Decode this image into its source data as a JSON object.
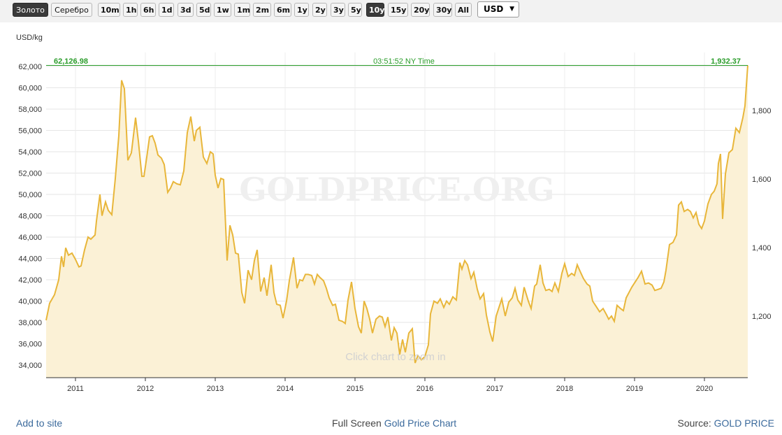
{
  "toolbar": {
    "metals": [
      "Золото",
      "Серебро"
    ],
    "active_metal": "Золото",
    "ranges": [
      "10m",
      "1h",
      "6h",
      "1d",
      "3d",
      "5d",
      "1w",
      "1m",
      "2m",
      "6m",
      "1y",
      "2y",
      "3y",
      "5y",
      "10y",
      "15y",
      "20y",
      "30y",
      "All"
    ],
    "active_range": "10y",
    "currency": "USD"
  },
  "chart": {
    "unit_label": "USD/kg",
    "current_left": "62,126.98",
    "current_time": "03:51:52 NY Time",
    "current_right": "1,932.37",
    "watermark": "GOLDPRICE.ORG",
    "zoom_hint": "Click chart to zoom in",
    "line_color": "#e8b63a",
    "fill_color": "#fbf1d6",
    "current_line_color": "#2a9c2a"
  },
  "chart_data": {
    "type": "area",
    "title": "",
    "xlabel": "",
    "ylabel": "USD/kg",
    "x_ticks": [
      "2011",
      "2012",
      "2013",
      "2014",
      "2015",
      "2016",
      "2017",
      "2018",
      "2019",
      "2020"
    ],
    "y_left_ticks": [
      "34,000",
      "36,000",
      "38,000",
      "40,000",
      "42,000",
      "44,000",
      "46,000",
      "48,000",
      "50,000",
      "52,000",
      "54,000",
      "56,000",
      "58,000",
      "60,000",
      "62,000"
    ],
    "y_right_ticks": [
      "1,200",
      "1,400",
      "1,600",
      "1,800"
    ],
    "ylim": [
      33000,
      63000
    ],
    "xlim": [
      2010.58,
      2020.62
    ],
    "series": [
      {
        "x": [
          2010.58,
          2010.63,
          2010.7,
          2010.76,
          2010.8,
          2010.83,
          2010.86,
          2010.9,
          2010.95,
          2011.0,
          2011.05,
          2011.08,
          2011.13,
          2011.18,
          2011.22,
          2011.28,
          2011.3,
          2011.35,
          2011.38,
          2011.43,
          2011.47,
          2011.52,
          2011.57,
          2011.62,
          2011.66,
          2011.7,
          2011.75,
          2011.8,
          2011.86,
          2011.9,
          2011.95,
          2011.98,
          2012.02,
          2012.06,
          2012.1,
          2012.14,
          2012.18,
          2012.23,
          2012.27,
          2012.32,
          2012.36,
          2012.4,
          2012.45,
          2012.5,
          2012.55,
          2012.6,
          2012.65,
          2012.7,
          2012.73,
          2012.78,
          2012.83,
          2012.88,
          2012.93,
          2012.97,
          2013.0,
          2013.04,
          2013.08,
          2013.12,
          2013.17,
          2013.21,
          2013.25,
          2013.29,
          2013.33,
          2013.38,
          2013.42,
          2013.47,
          2013.52,
          2013.56,
          2013.6,
          2013.65,
          2013.7,
          2013.74,
          2013.8,
          2013.84,
          2013.88,
          2013.93,
          2013.97,
          2014.02,
          2014.06,
          2014.12,
          2014.17,
          2014.21,
          2014.25,
          2014.29,
          2014.33,
          2014.38,
          2014.42,
          2014.46,
          2014.5,
          2014.55,
          2014.59,
          2014.63,
          2014.68,
          2014.72,
          2014.77,
          2014.82,
          2014.86,
          2014.9,
          2014.95,
          2015.0,
          2015.05,
          2015.09,
          2015.13,
          2015.17,
          2015.21,
          2015.25,
          2015.3,
          2015.35,
          2015.39,
          2015.43,
          2015.47,
          2015.52,
          2015.56,
          2015.6,
          2015.64,
          2015.68,
          2015.72,
          2015.77,
          2015.82,
          2015.86,
          2015.9,
          2015.95,
          2016.0,
          2016.05,
          2016.08,
          2016.13,
          2016.18,
          2016.22,
          2016.27,
          2016.31,
          2016.35,
          2016.4,
          2016.45,
          2016.5,
          2016.53,
          2016.57,
          2016.61,
          2016.66,
          2016.7,
          2016.75,
          2016.79,
          2016.84,
          2016.88,
          2016.93,
          2016.97,
          2017.02,
          2017.06,
          2017.1,
          2017.15,
          2017.2,
          2017.25,
          2017.29,
          2017.33,
          2017.38,
          2017.42,
          2017.48,
          2017.52,
          2017.57,
          2017.6,
          2017.65,
          2017.69,
          2017.73,
          2017.78,
          2017.82,
          2017.86,
          2017.91,
          2017.96,
          2018.0,
          2018.05,
          2018.1,
          2018.14,
          2018.18,
          2018.22,
          2018.27,
          2018.32,
          2018.36,
          2018.4,
          2018.45,
          2018.5,
          2018.55,
          2018.6,
          2018.63,
          2018.67,
          2018.71,
          2018.75,
          2018.8,
          2018.84,
          2018.88,
          2018.92,
          2018.96,
          2019.0,
          2019.05,
          2019.1,
          2019.15,
          2019.2,
          2019.25,
          2019.29,
          2019.34,
          2019.38,
          2019.42,
          2019.45,
          2019.5,
          2019.55,
          2019.6,
          2019.63,
          2019.67,
          2019.71,
          2019.76,
          2019.8,
          2019.84,
          2019.88,
          2019.92,
          2019.96,
          2020.0,
          2020.05,
          2020.1,
          2020.14,
          2020.18,
          2020.2,
          2020.23,
          2020.26,
          2020.3,
          2020.35,
          2020.4,
          2020.45,
          2020.5,
          2020.55,
          2020.58,
          2020.62
        ],
        "values": [
          38200,
          39800,
          40600,
          42000,
          44200,
          43200,
          45000,
          44300,
          44500,
          43900,
          43200,
          43300,
          44800,
          46000,
          45800,
          46200,
          47500,
          50000,
          48000,
          49300,
          48500,
          48100,
          51500,
          55500,
          60700,
          59900,
          53200,
          53900,
          57200,
          55000,
          51700,
          51700,
          53500,
          55400,
          55500,
          54800,
          53700,
          53400,
          52800,
          50200,
          50600,
          51200,
          51000,
          50900,
          52200,
          55800,
          57300,
          55000,
          56000,
          56300,
          53500,
          52900,
          54000,
          53800,
          51800,
          50600,
          51500,
          51400,
          43800,
          47100,
          46200,
          44500,
          44400,
          40800,
          39800,
          42900,
          42000,
          43800,
          44800,
          40900,
          42200,
          40500,
          43400,
          40800,
          39700,
          39600,
          38400,
          40000,
          41900,
          44100,
          41200,
          42000,
          41900,
          42500,
          42500,
          42400,
          41600,
          42500,
          42200,
          41900,
          41200,
          40300,
          39600,
          39700,
          38200,
          38100,
          37900,
          40100,
          41800,
          39300,
          37600,
          37000,
          40000,
          39300,
          38300,
          37000,
          38300,
          38600,
          38500,
          37600,
          38500,
          36300,
          37500,
          37000,
          35000,
          36400,
          35200,
          37000,
          37400,
          34200,
          34900,
          34500,
          34800,
          35900,
          38800,
          40000,
          39800,
          40200,
          39400,
          40000,
          39700,
          40400,
          40100,
          43600,
          43000,
          43800,
          43400,
          42100,
          42700,
          41100,
          40200,
          40700,
          38700,
          37100,
          36200,
          38600,
          39400,
          40200,
          38600,
          39900,
          40300,
          41200,
          40100,
          39600,
          41300,
          40000,
          39300,
          41400,
          41600,
          43400,
          41700,
          41000,
          41100,
          40900,
          41700,
          40900,
          42600,
          43500,
          42300,
          42600,
          42400,
          43400,
          42800,
          42100,
          41600,
          41400,
          40000,
          39500,
          39000,
          39300,
          38700,
          38300,
          38600,
          38100,
          39600,
          39300,
          39100,
          40300,
          40800,
          41300,
          41700,
          42200,
          42800,
          41600,
          41700,
          41500,
          41000,
          41100,
          41200,
          41800,
          42900,
          45300,
          45500,
          46200,
          49000,
          49300,
          48400,
          48600,
          48400,
          47800,
          48300,
          47200,
          46800,
          47500,
          49100,
          50000,
          50300,
          51000,
          52900,
          53800,
          47700,
          51900,
          53900,
          54200,
          56200,
          55800,
          57200,
          58300,
          62100
        ]
      }
    ]
  },
  "footer": {
    "add_to_site": "Add to site",
    "fullscreen_prefix": "Full Screen",
    "fullscreen_link": "Gold Price Chart",
    "source_prefix": "Source:",
    "source_link": "GOLD PRICE"
  }
}
